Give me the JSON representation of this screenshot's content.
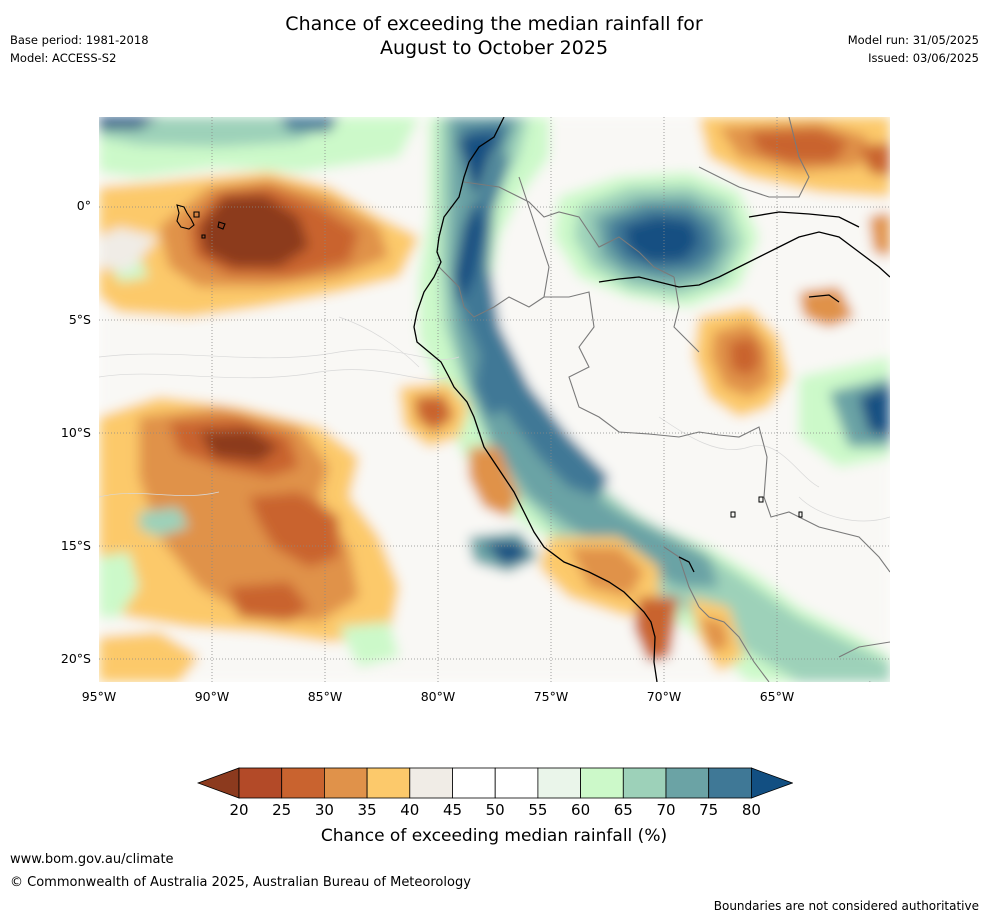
{
  "title_line1": "Chance of exceeding the median rainfall for",
  "title_line2": "August to October 2025",
  "base_period": "Base period: 1981-2018",
  "model": "Model: ACCESS-S2",
  "model_run": "Model run: 31/05/2025",
  "issued": "Issued: 03/06/2025",
  "lat_labels": [
    "0°",
    "5°S",
    "10°S",
    "15°S",
    "20°S"
  ],
  "lon_labels": [
    "95°W",
    "90°W",
    "85°W",
    "80°W",
    "75°W",
    "70°W",
    "65°W"
  ],
  "colorbar": {
    "ticks": [
      "20",
      "25",
      "30",
      "35",
      "40",
      "45",
      "50",
      "55",
      "60",
      "65",
      "70",
      "75",
      "80"
    ],
    "colors": [
      "#8c3a1e",
      "#b34a28",
      "#c9632f",
      "#e0924a",
      "#fcc96b",
      "#f0ece6",
      "#ffffff",
      "#ffffff",
      "#eaf5ea",
      "#ccf9c9",
      "#9dd1b9",
      "#6ba3a5",
      "#3f7896",
      "#124f82"
    ],
    "label": "Chance of exceeding median rainfall (%)"
  },
  "website": "www.bom.gov.au/climate",
  "copyright": "© Commonwealth of Australia 2025, Australian Bureau of Meteorology",
  "disclaimer": "Boundaries are not considered authoritative"
}
